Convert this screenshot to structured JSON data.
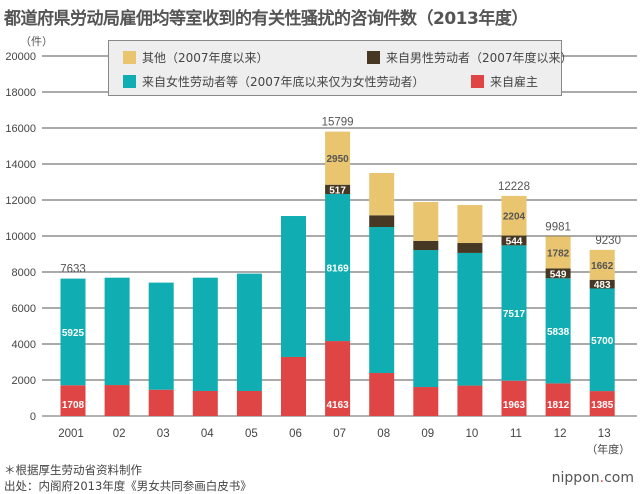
{
  "title": "都道府県労动局雇佣均等室收到的有关性骚扰的咨询件数（2013年度）",
  "unit_label": "（件）",
  "year_suffix": "（年度）",
  "footnote": "＊根据厚生劳动省资料制作",
  "source": "出处：内阁府2013年度《男女共同参画白皮书》",
  "logo": {
    "name": "nippon",
    "dot": ".",
    "tld": "com"
  },
  "chart_data": {
    "type": "bar",
    "stacked": true,
    "title": "都道府県労动局雇佣均等室收到的有关性骚扰的咨询件数（2013年度）",
    "ylabel": "（件）",
    "xlabel": "（年度）",
    "ylim": [
      0,
      20000
    ],
    "yticks": [
      "0",
      "2000",
      "4000",
      "6000",
      "8000",
      "10000",
      "12000",
      "14000",
      "16000",
      "18000",
      "20000"
    ],
    "grid": true,
    "legend_position": "top",
    "categories": [
      "2001",
      "02",
      "03",
      "04",
      "05",
      "06",
      "07",
      "08",
      "09",
      "10",
      "11",
      "12",
      "13"
    ],
    "series": [
      {
        "name": "来自雇主",
        "color": "#e04545",
        "values": [
          1708,
          1720,
          1460,
          1390,
          1390,
          3280,
          4163,
          2390,
          1610,
          1690,
          1963,
          1812,
          1385
        ],
        "labels": [
          "1708",
          null,
          null,
          null,
          null,
          null,
          "4163",
          null,
          null,
          null,
          "1963",
          "1812",
          "1385"
        ]
      },
      {
        "name": "来自女性劳动者等（2007年底以来仅为女性劳动者）",
        "color": "#10adb2",
        "values": [
          5925,
          5965,
          5950,
          6295,
          6520,
          7830,
          8169,
          8110,
          7610,
          7370,
          7517,
          5838,
          5700
        ],
        "labels": [
          "5925",
          null,
          null,
          null,
          null,
          null,
          "8169",
          null,
          null,
          null,
          "7517",
          "5838",
          "5700"
        ]
      },
      {
        "name": "来自男性劳动者（2007年度以来）",
        "color": "#463823",
        "values": [
          null,
          null,
          null,
          null,
          null,
          null,
          517,
          650,
          510,
          550,
          544,
          549,
          483
        ],
        "labels": [
          null,
          null,
          null,
          null,
          null,
          null,
          "517",
          null,
          null,
          null,
          "544",
          "549",
          "483"
        ]
      },
      {
        "name": "其他（2007年度以来）",
        "color": "#e8c56e",
        "values": [
          null,
          null,
          null,
          null,
          null,
          null,
          2950,
          2350,
          2160,
          2110,
          2204,
          1782,
          1662
        ],
        "labels": [
          null,
          null,
          null,
          null,
          null,
          null,
          "2950",
          null,
          null,
          null,
          "2204",
          "1782",
          "1662"
        ]
      }
    ],
    "totals": [
      "7633",
      null,
      null,
      null,
      null,
      null,
      "15799",
      null,
      null,
      null,
      "12228",
      "9981",
      "9230"
    ]
  }
}
